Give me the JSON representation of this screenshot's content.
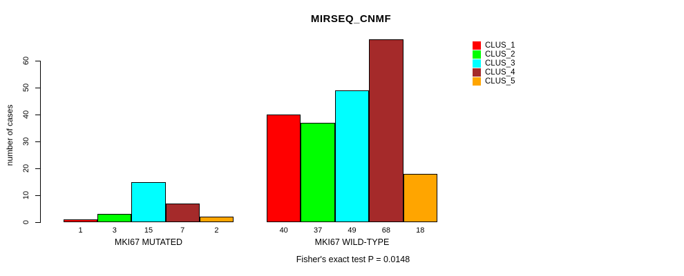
{
  "chart_data": {
    "type": "bar",
    "title": "MIRSEQ_CNMF",
    "ylabel": "number of cases",
    "subtitle": "Fisher's exact test P = 0.0148",
    "ylim": [
      0,
      60
    ],
    "yticks": [
      0,
      10,
      20,
      30,
      40,
      50,
      60
    ],
    "grid": false,
    "legend_position": "right",
    "bar_value_labels": true,
    "series": [
      {
        "name": "CLUS_1",
        "color": "#FF0000"
      },
      {
        "name": "CLUS_2",
        "color": "#00FF00"
      },
      {
        "name": "CLUS_3",
        "color": "#00FFFF"
      },
      {
        "name": "CLUS_4",
        "color": "#A52A2A"
      },
      {
        "name": "CLUS_5",
        "color": "#FFA500"
      }
    ],
    "groups": [
      {
        "label": "MKI67 MUTATED",
        "values": [
          1,
          3,
          15,
          7,
          2
        ]
      },
      {
        "label": "MKI67 WILD-TYPE",
        "values": [
          40,
          37,
          49,
          68,
          18
        ]
      }
    ]
  }
}
